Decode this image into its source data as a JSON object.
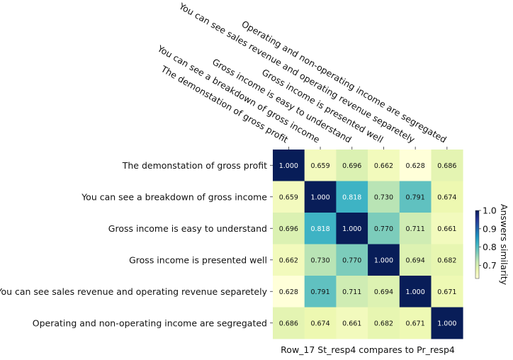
{
  "chart_data": {
    "type": "heatmap",
    "rows": [
      "The demonstation of gross profit",
      "You can see a breakdown of gross income",
      "Gross income is easy to understand",
      "Gross income is presented well",
      "You can see sales revenue and operating revenue separetely",
      "Operating and non-operating income are segregated"
    ],
    "columns": [
      "The demonstation of gross profit",
      "You can see a breakdown of gross income",
      "Gross income is easy to understand",
      "Gross income is presented well",
      "You can see sales revenue and operating revenue separetely",
      "Operating and non-operating income are segregated"
    ],
    "values": [
      [
        1.0,
        0.659,
        0.696,
        0.662,
        0.628,
        0.686
      ],
      [
        0.659,
        1.0,
        0.818,
        0.73,
        0.791,
        0.674
      ],
      [
        0.696,
        0.818,
        1.0,
        0.77,
        0.711,
        0.661
      ],
      [
        0.662,
        0.73,
        0.77,
        1.0,
        0.694,
        0.682
      ],
      [
        0.628,
        0.791,
        0.711,
        0.694,
        1.0,
        0.671
      ],
      [
        0.686,
        0.674,
        0.661,
        0.682,
        0.671,
        1.0
      ]
    ],
    "cell_labels": [
      [
        "1.000",
        "0.659",
        "0.696",
        "0.662",
        "0.628",
        "0.686"
      ],
      [
        "0.659",
        "1.000",
        "0.818",
        "0.730",
        "0.791",
        "0.674"
      ],
      [
        "0.696",
        "0.818",
        "1.000",
        "0.770",
        "0.711",
        "0.661"
      ],
      [
        "0.662",
        "0.730",
        "0.770",
        "1.000",
        "0.694",
        "0.682"
      ],
      [
        "0.628",
        "0.791",
        "0.711",
        "0.694",
        "1.000",
        "0.671"
      ],
      [
        "0.686",
        "0.674",
        "0.661",
        "0.682",
        "0.671",
        "1.000"
      ]
    ],
    "xlabel": "Row_17 St_resp4 compares to Pr_resp4",
    "colorbar": {
      "label": "Answers similarity",
      "range": [
        0.628,
        1.0
      ],
      "ticks": [
        0.7,
        0.8,
        0.9,
        1.0
      ],
      "tick_labels": [
        "0.7",
        "0.8",
        "0.9",
        "1.0"
      ],
      "colormap": "YlGnBu"
    },
    "column_labels_position": "top",
    "grid": false
  }
}
